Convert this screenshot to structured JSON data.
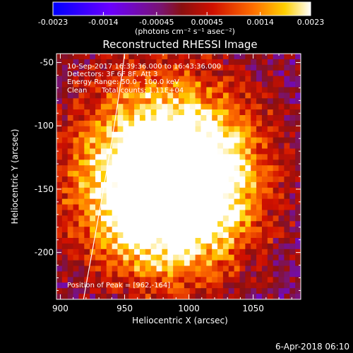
{
  "chart_data": {
    "type": "heatmap",
    "title": "Reconstructed RHESSI Image",
    "xlabel": "Heliocentric X (arcsec)",
    "ylabel": "Heliocentric Y (arcsec)",
    "xlim": [
      897,
      1087
    ],
    "ylim": [
      -237,
      -43
    ],
    "x_ticks": [
      900,
      950,
      1000,
      1050
    ],
    "y_ticks": [
      -50,
      -100,
      -150,
      -200
    ],
    "colorbar": {
      "min": -0.0023,
      "max": 0.0023,
      "ticks": [
        "-0.0023",
        "-0.0014",
        "-0.00045",
        "0.00045",
        "0.0014",
        "0.0023"
      ],
      "unit_label": "(photons cm⁻² s⁻¹ asec⁻²)"
    },
    "annotations": {
      "time_range": "10-Sep-2017 16:39:36.000 to 16:43:36.000",
      "detectors": "Detectors: 3F 6F 8F, Att 3",
      "energy": "Energy Range: 50.0 - 100.0 keV",
      "clean": "Clean",
      "total_counts": "Total counts: 1.11E+04",
      "peak": "Position of Peak = [962,-164]"
    },
    "peak": [
      962,
      -164
    ],
    "source_lobes": [
      {
        "x": 980,
        "y": -110,
        "sigma": 45,
        "amp": 0.0022
      },
      {
        "x": 960,
        "y": -160,
        "sigma": 40,
        "amp": 0.0023
      },
      {
        "x": 1020,
        "y": -140,
        "sigma": 35,
        "amp": 0.0016
      },
      {
        "x": 1000,
        "y": -190,
        "sigma": 35,
        "amp": 0.0012
      }
    ],
    "limb_curve": [
      [
        950,
        -43
      ],
      [
        943,
        -100
      ],
      [
        930,
        -170
      ],
      [
        918,
        -237
      ]
    ],
    "footer": "6-Apr-2018 06:10"
  }
}
